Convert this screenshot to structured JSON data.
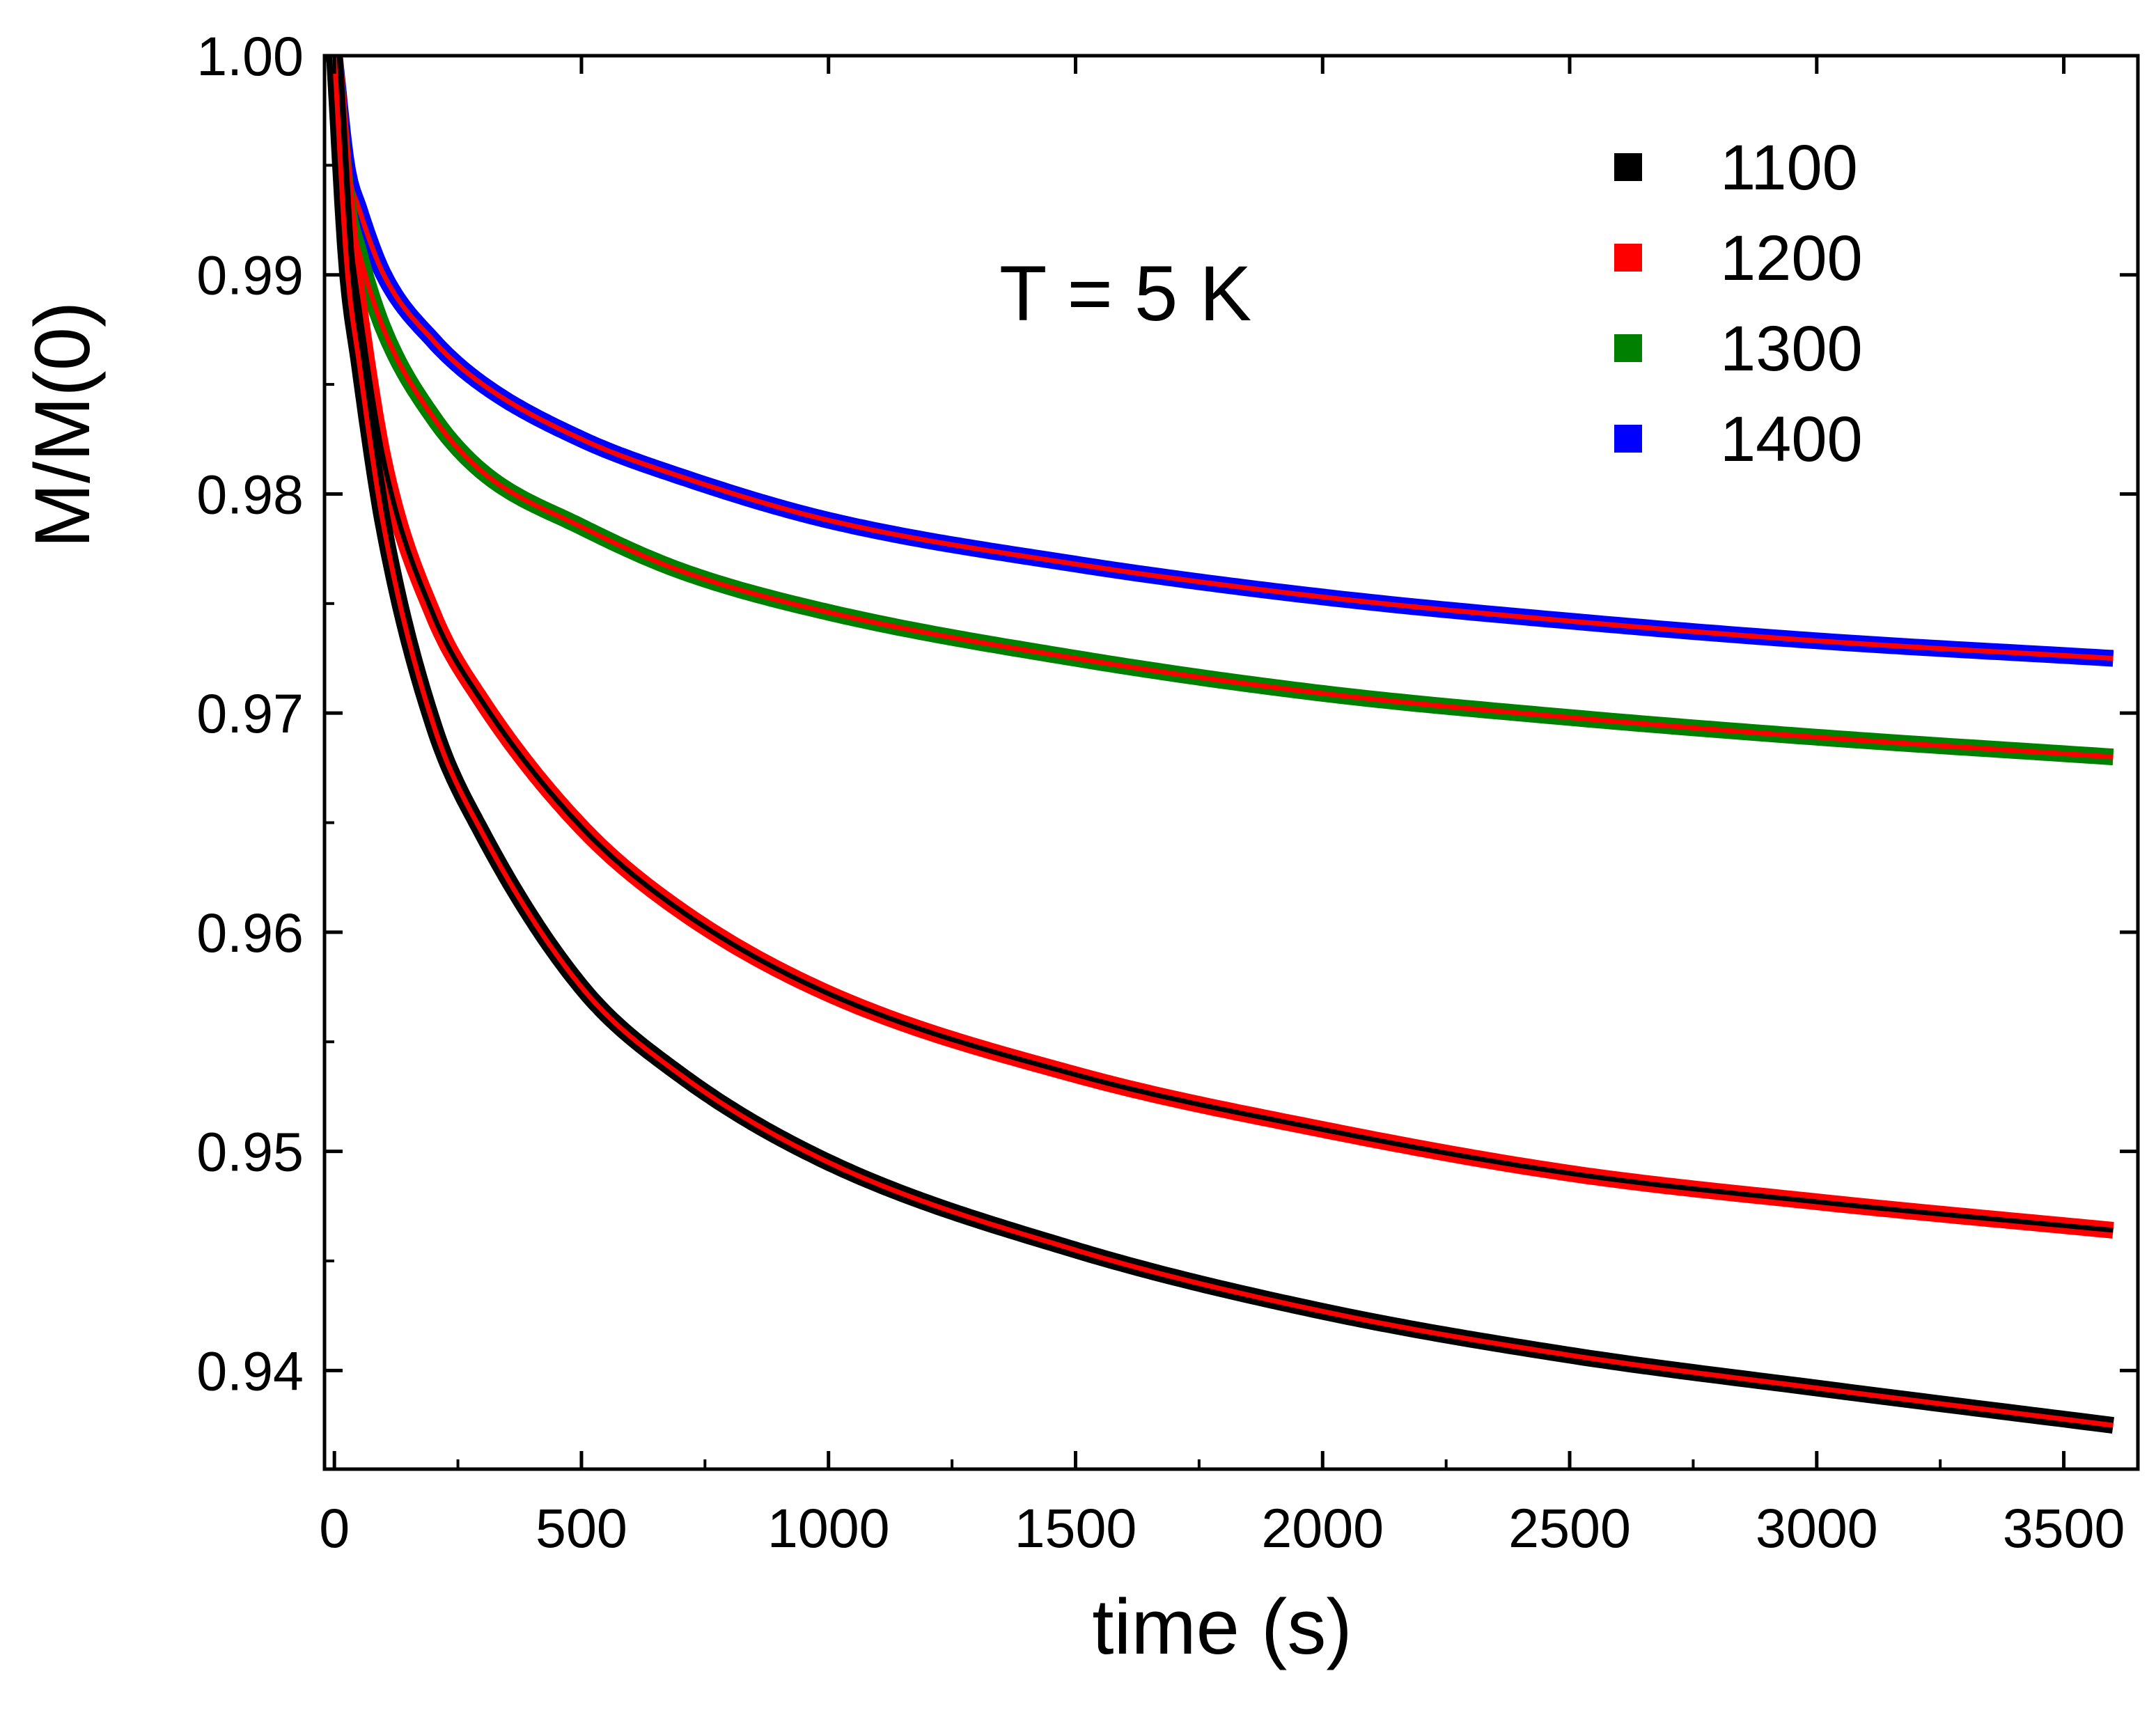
{
  "chart_data": {
    "type": "line",
    "title": "",
    "xlabel": "time (s)",
    "ylabel": "M/M(0)",
    "xlim": [
      -20,
      3650
    ],
    "ylim": [
      0.9355,
      1.0
    ],
    "x_ticks": [
      0,
      500,
      1000,
      1500,
      2000,
      2500,
      3000,
      3500
    ],
    "x_tick_labels": [
      "0",
      "500",
      "1000",
      "1500",
      "2000",
      "2500",
      "3000",
      "3500"
    ],
    "y_ticks": [
      0.94,
      0.95,
      0.96,
      0.97,
      0.98,
      0.99,
      1.0
    ],
    "y_tick_labels": [
      "0.94",
      "0.95",
      "0.96",
      "0.97",
      "0.98",
      "0.99",
      "1.00"
    ],
    "annotation": "T = 5 K",
    "legend_position": "top-right",
    "fit_line_note": "solid fit curves overlaid on each data series",
    "x": [
      0,
      25,
      50,
      100,
      200,
      300,
      500,
      700,
      1000,
      1500,
      2000,
      2500,
      3000,
      3600
    ],
    "series": [
      {
        "name": "1100",
        "color": "#000000",
        "fit_color": "#ff0000",
        "values": [
          1.0,
          0.9905,
          0.986,
          0.9785,
          0.9695,
          0.9645,
          0.9575,
          0.9535,
          0.9495,
          0.9455,
          0.9427,
          0.9407,
          0.9392,
          0.9375
        ]
      },
      {
        "name": "1200",
        "color": "#ff0000",
        "fit_color": "#000000",
        "values": [
          1.0,
          0.993,
          0.9885,
          0.9815,
          0.9745,
          0.9705,
          0.9648,
          0.961,
          0.9572,
          0.9535,
          0.951,
          0.949,
          0.9477,
          0.9464
        ]
      },
      {
        "name": "1300",
        "color": "#008000",
        "fit_color": "#ff0000",
        "values": [
          1.0,
          0.9935,
          0.991,
          0.9875,
          0.9835,
          0.981,
          0.9785,
          0.9765,
          0.9746,
          0.9725,
          0.9709,
          0.9698,
          0.9689,
          0.968
        ]
      },
      {
        "name": "1400",
        "color": "#0000ff",
        "fit_color": "#ff0000",
        "values": [
          1.0,
          0.995,
          0.993,
          0.99,
          0.987,
          0.985,
          0.9825,
          0.9808,
          0.9788,
          0.9768,
          0.9753,
          0.9742,
          0.9733,
          0.9725
        ]
      }
    ]
  }
}
